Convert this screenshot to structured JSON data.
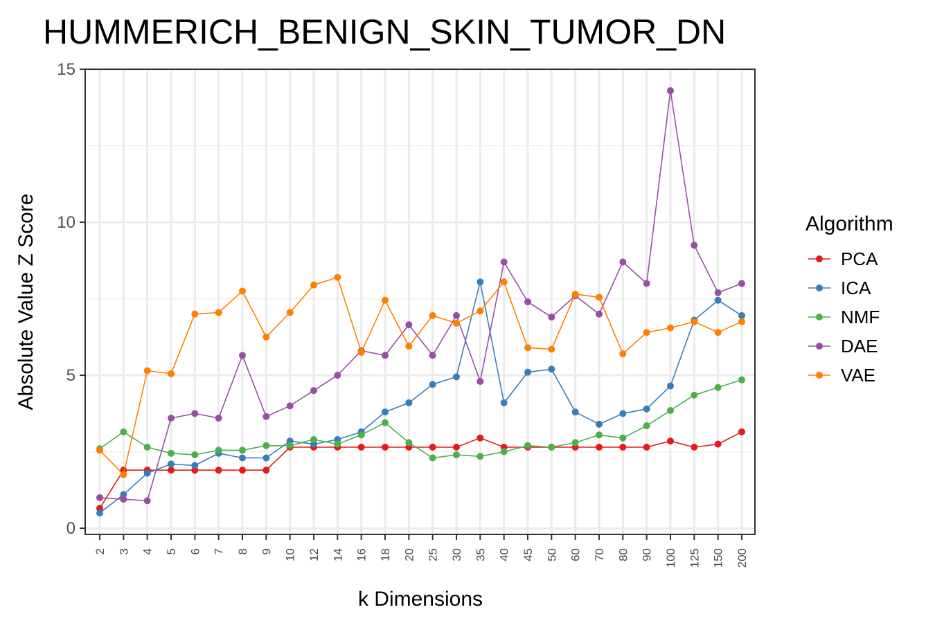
{
  "chart_data": {
    "type": "line",
    "title": "HUMMERICH_BENIGN_SKIN_TUMOR_DN",
    "xlabel": "k Dimensions",
    "ylabel": "Absolute Value Z Score",
    "ylim": [
      -0.2,
      15
    ],
    "yticks": [
      0,
      5,
      10,
      15
    ],
    "grid": true,
    "legend_title": "Algorithm",
    "legend_position": "right",
    "categories": [
      "2",
      "3",
      "4",
      "5",
      "6",
      "7",
      "8",
      "9",
      "10",
      "12",
      "14",
      "16",
      "18",
      "20",
      "25",
      "30",
      "35",
      "40",
      "45",
      "50",
      "60",
      "70",
      "80",
      "90",
      "100",
      "125",
      "150",
      "200"
    ],
    "series": [
      {
        "name": "PCA",
        "color": "#e41a1c",
        "values": [
          0.65,
          1.9,
          1.9,
          1.9,
          1.9,
          1.9,
          1.9,
          1.9,
          2.65,
          2.65,
          2.65,
          2.65,
          2.65,
          2.65,
          2.65,
          2.65,
          2.95,
          2.65,
          2.65,
          2.65,
          2.65,
          2.65,
          2.65,
          2.65,
          2.85,
          2.65,
          2.75,
          3.15
        ]
      },
      {
        "name": "ICA",
        "color": "#377eb8",
        "values": [
          0.5,
          1.1,
          1.8,
          2.1,
          2.05,
          2.45,
          2.3,
          2.3,
          2.85,
          2.75,
          2.9,
          3.15,
          3.8,
          4.1,
          4.7,
          4.95,
          8.05,
          4.1,
          5.1,
          5.2,
          3.8,
          3.4,
          3.75,
          3.9,
          4.65,
          6.8,
          7.45,
          6.95
        ]
      },
      {
        "name": "NMF",
        "color": "#4daf4a",
        "values": [
          2.6,
          3.15,
          2.65,
          2.45,
          2.4,
          2.55,
          2.55,
          2.7,
          2.7,
          2.9,
          2.75,
          3.05,
          3.45,
          2.8,
          2.3,
          2.4,
          2.35,
          2.5,
          2.7,
          2.65,
          2.8,
          3.05,
          2.95,
          3.35,
          3.85,
          4.35,
          4.6,
          4.85
        ]
      },
      {
        "name": "DAE",
        "color": "#984ea3",
        "values": [
          1.0,
          0.95,
          0.9,
          3.6,
          3.75,
          3.6,
          5.65,
          3.65,
          4.0,
          4.5,
          5.0,
          5.8,
          5.65,
          6.65,
          5.65,
          6.95,
          4.8,
          8.7,
          7.4,
          6.9,
          7.6,
          7.0,
          8.7,
          8.0,
          14.3,
          9.25,
          7.7,
          8.0
        ]
      },
      {
        "name": "VAE",
        "color": "#ff7f00",
        "values": [
          2.55,
          1.75,
          5.15,
          5.05,
          7.0,
          7.05,
          7.75,
          6.25,
          7.05,
          7.95,
          8.2,
          5.75,
          7.45,
          5.95,
          6.95,
          6.7,
          7.1,
          8.05,
          5.9,
          5.85,
          7.65,
          7.55,
          5.7,
          6.4,
          6.55,
          6.75,
          6.4,
          6.75
        ]
      }
    ]
  }
}
